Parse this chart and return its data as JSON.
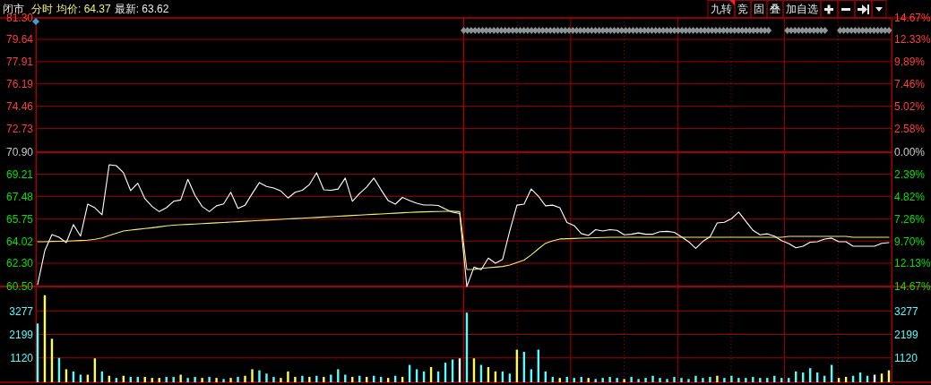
{
  "chart_data": [
    {
      "type": "line",
      "title": "闭市",
      "subtitle": "分时",
      "annotations": [
        "均价: 64.37",
        "最新: 63.62",
        "九转",
        "竞",
        "固",
        "叠",
        "加自选"
      ],
      "categories": [
        null,
        null,
        null,
        null,
        null,
        null,
        null,
        null,
        null,
        null,
        null,
        null,
        null,
        null,
        null,
        null,
        null,
        null,
        null,
        null,
        null,
        null,
        null,
        null,
        null,
        null,
        null,
        null,
        null,
        null,
        null,
        null,
        null,
        null,
        null,
        null,
        null,
        null,
        null,
        null,
        null,
        null,
        null,
        null,
        null,
        null,
        null,
        null,
        null,
        null,
        null,
        null,
        null,
        null,
        null,
        null,
        null,
        null,
        null,
        null,
        null,
        null,
        null,
        null,
        null,
        null,
        null,
        null,
        null,
        null,
        null,
        null,
        null,
        null,
        null,
        null,
        null,
        null,
        null,
        null,
        null,
        null,
        null,
        null,
        null,
        null,
        null,
        null,
        null,
        null,
        null,
        null,
        null,
        null,
        null,
        null,
        null,
        null,
        null,
        null,
        null,
        null,
        null,
        null,
        null,
        null,
        null,
        null,
        null,
        null,
        null,
        null,
        null,
        null,
        null,
        null,
        null,
        null,
        null,
        null
      ],
      "ylim": [
        60.5,
        81.3
      ],
      "yticks": [
        {
          "value": 60.5,
          "label": "60.50"
        },
        {
          "value": 62.3,
          "label": "62.30"
        },
        64.02,
        65.75,
        67.48,
        69.21,
        {
          "value": 70.9,
          "label": "70.90"
        },
        72.73,
        74.46,
        76.19,
        77.91,
        79.64,
        {
          "value": 81.3,
          "label": "81.30"
        }
      ],
      "y2lim": [
        -14.67,
        14.67
      ],
      "y2ticks": [
        {
          "value": -14.67,
          "label": "14.67%"
        },
        {
          "value": -12.13,
          "label": "12.13%"
        },
        {
          "value": -9.7,
          "label": "9.70%"
        },
        {
          "value": -7.26,
          "label": "7.26%"
        },
        {
          "value": -4.82,
          "label": "4.82%"
        },
        {
          "value": -2.39,
          "label": "2.39%"
        },
        {
          "value": 0,
          "label": "0.00%"
        },
        {
          "value": 2.58,
          "label": "2.58%"
        },
        {
          "value": 5.02,
          "label": "5.02%"
        },
        {
          "value": 7.46,
          "label": "7.46%"
        },
        {
          "value": 9.89,
          "label": "9.89%"
        },
        {
          "value": 12.33,
          "label": "12.33%"
        },
        {
          "value": 14.67,
          "label": "14.67%"
        }
      ],
      "tick_labels": "y",
      "grid": "y",
      "ref_lines": [
        {
          "axis": "y",
          "value": 70.9,
          "color": "#a00000"
        }
      ],
      "series": [
        {
          "color": "#ffffff",
          "values": [
            60.64,
            63.27,
            64.52,
            64.31,
            63.9,
            65.29,
            64.4,
            66.88,
            66.6,
            66.05,
            69.93,
            69.86,
            69.31,
            67.92,
            68.5,
            67.3,
            66.7,
            66.3,
            66.6,
            67.1,
            67.2,
            68.8,
            67.55,
            66.7,
            66.3,
            66.75,
            66.9,
            67.8,
            66.55,
            66.8,
            67.7,
            68.55,
            68.25,
            68.13,
            67.9,
            67.35,
            67.8,
            67.95,
            68.4,
            69.31,
            67.99,
            67.95,
            68.05,
            68.9,
            67.1,
            67.7,
            68.2,
            68.9,
            68.0,
            67.15,
            66.88,
            67.4,
            67.15,
            66.95,
            66.81,
            66.81,
            66.77,
            66.5,
            66.26,
            66.15,
            60.5,
            62.0,
            61.8,
            62.7,
            62.3,
            62.6,
            64.8,
            66.8,
            66.88,
            68.05,
            67.5,
            66.75,
            66.8,
            66.6,
            65.45,
            65.22,
            64.6,
            64.45,
            64.9,
            64.8,
            64.9,
            64.85,
            64.5,
            64.55,
            64.65,
            64.55,
            64.55,
            64.75,
            64.77,
            64.7,
            64.35,
            63.97,
            63.45,
            64.0,
            64.35,
            65.42,
            65.48,
            65.75,
            66.26,
            65.55,
            64.85,
            64.5,
            64.58,
            64.4,
            64.05,
            63.83,
            63.5,
            63.62,
            63.93,
            63.97,
            64.18,
            64.25,
            63.97,
            63.97,
            63.62,
            63.62,
            63.62,
            63.62,
            63.85,
            63.9
          ]
        },
        {
          "color": "#f0f070",
          "values": [
            63.97,
            63.97,
            63.99,
            64.0,
            64.02,
            64.04,
            64.06,
            64.09,
            64.16,
            64.26,
            64.45,
            64.62,
            64.8,
            64.87,
            64.93,
            64.99,
            65.05,
            65.12,
            65.2,
            65.25,
            65.28,
            65.31,
            65.34,
            65.37,
            65.4,
            65.43,
            65.46,
            65.49,
            65.52,
            65.55,
            65.58,
            65.61,
            65.64,
            65.67,
            65.7,
            65.73,
            65.76,
            65.79,
            65.82,
            65.85,
            65.88,
            65.91,
            65.94,
            65.97,
            66.0,
            66.03,
            66.06,
            66.09,
            66.12,
            66.15,
            66.18,
            66.21,
            66.24,
            66.26,
            66.28,
            66.3,
            66.31,
            66.32,
            66.33,
            66.3,
            61.82,
            61.82,
            61.9,
            61.96,
            62.0,
            62.05,
            62.16,
            62.35,
            62.55,
            62.95,
            63.41,
            63.85,
            64.04,
            64.18,
            64.2,
            64.22,
            64.24,
            64.26,
            64.28,
            64.3,
            64.31,
            64.31,
            64.31,
            64.31,
            64.31,
            64.31,
            64.31,
            64.31,
            64.31,
            64.31,
            64.31,
            64.31,
            64.31,
            64.31,
            64.31,
            64.31,
            64.31,
            64.31,
            64.31,
            64.31,
            64.31,
            64.31,
            64.31,
            64.31,
            64.31,
            64.38,
            64.38,
            64.38,
            64.38,
            64.38,
            64.38,
            64.38,
            64.38,
            64.38,
            64.31,
            64.31,
            64.31,
            64.31,
            64.31,
            64.31
          ]
        }
      ]
    },
    {
      "type": "bar",
      "categories": [
        null,
        null,
        null,
        null,
        null,
        null,
        null,
        null,
        null,
        null,
        null,
        null,
        null,
        null,
        null,
        null,
        null,
        null,
        null,
        null,
        null,
        null,
        null,
        null,
        null,
        null,
        null,
        null,
        null,
        null,
        null,
        null,
        null,
        null,
        null,
        null,
        null,
        null,
        null,
        null,
        null,
        null,
        null,
        null,
        null,
        null,
        null,
        null,
        null,
        null,
        null,
        null,
        null,
        null,
        null,
        null,
        null,
        null,
        null,
        null,
        null,
        null,
        null,
        null,
        null,
        null,
        null,
        null,
        null,
        null,
        null,
        null,
        null,
        null,
        null,
        null,
        null,
        null,
        null,
        null,
        null,
        null,
        null,
        null,
        null,
        null,
        null,
        null,
        null,
        null,
        null,
        null,
        null,
        null,
        null,
        null,
        null,
        null,
        null,
        null,
        null,
        null,
        null,
        null,
        null,
        null,
        null,
        null,
        null,
        null,
        null,
        null,
        null,
        null,
        null,
        null,
        null,
        null,
        null,
        null
      ],
      "ylim": [
        0,
        4400
      ],
      "yticks": [
        1120,
        2199,
        3277
      ],
      "y2lim": [
        0,
        4400
      ],
      "y2ticks": [
        1120,
        2199,
        3277
      ],
      "tick_labels": "y",
      "grid": "y",
      "series": [
        {
          "values": [
            2700,
            4000,
            2000,
            1120,
            600,
            500,
            350,
            350,
            1100,
            500,
            300,
            200,
            300,
            250,
            250,
            250,
            200,
            200,
            250,
            250,
            350,
            200,
            250,
            200,
            250,
            200,
            150,
            200,
            250,
            300,
            600,
            550,
            400,
            250,
            200,
            500,
            250,
            300,
            250,
            300,
            250,
            350,
            600,
            350,
            250,
            300,
            250,
            300,
            250,
            200,
            300,
            250,
            800,
            600,
            500,
            700,
            500,
            900,
            1050,
            1100,
            3200,
            1100,
            800,
            700,
            500,
            500,
            400,
            1500,
            1400,
            600,
            1500,
            500,
            250,
            200,
            250,
            200,
            250,
            200,
            150,
            200,
            250,
            200,
            150,
            250,
            150,
            200,
            300,
            200,
            150,
            250,
            200,
            150,
            300,
            200,
            250,
            300,
            200,
            300,
            200,
            200,
            250,
            200,
            200,
            300,
            200,
            200,
            500,
            450,
            650,
            450,
            300,
            800,
            200,
            250,
            300,
            450,
            300,
            350,
            400,
            550
          ],
          "colors": [
            "#54fcfc",
            "#fcfc54",
            "#fcfc54",
            "#54fcfc",
            "#fcfc54",
            "#54fcfc",
            "#54fcfc",
            "#fcfc54",
            "#fcfc54",
            "#54fcfc",
            "#fcfc54",
            "#54fcfc",
            "#fcfc54",
            "#54fcfc",
            "#54fcfc",
            "#fcfc54",
            "#fcfc54",
            "#fcfc54",
            "#54fcfc",
            "#54fcfc",
            "#fcfc54",
            "#54fcfc",
            "#54fcfc",
            "#fcfc54",
            "#54fcfc",
            "#fcfc54",
            "#54fcfc",
            "#fcfc54",
            "#54fcfc",
            "#fcfc54",
            "#fcfc54",
            "#54fcfc",
            "#54fcfc",
            "#54fcfc",
            "#fcfc54",
            "#fcfc54",
            "#fcfc54",
            "#54fcfc",
            "#fcfc54",
            "#54fcfc",
            "#fcfc54",
            "#54fcfc",
            "#54fcfc",
            "#54fcfc",
            "#fcfc54",
            "#54fcfc",
            "#fcfc54",
            "#54fcfc",
            "#54fcfc",
            "#fcfc54",
            "#54fcfc",
            "#fcfc54",
            "#54fcfc",
            "#54fcfc",
            "#54fcfc",
            "#fcfc54",
            "#54fcfc",
            "#54fcfc",
            "#54fcfc",
            "#fcfcfc",
            "#54fcfc",
            "#fcfc54",
            "#54fcfc",
            "#fcfc54",
            "#fcfc54",
            "#54fcfc",
            "#54fcfc",
            "#fcfc54",
            "#54fcfc",
            "#54fcfc",
            "#54fcfc",
            "#54fcfc",
            "#54fcfc",
            "#fcfc54",
            "#54fcfc",
            "#54fcfc",
            "#54fcfc",
            "#fcfc54",
            "#54fcfc",
            "#54fcfc",
            "#54fcfc",
            "#54fcfc",
            "#fcfc54",
            "#54fcfc",
            "#54fcfc",
            "#54fcfc",
            "#54fcfc",
            "#54fcfc",
            "#54fcfc",
            "#54fcfc",
            "#54fcfc",
            "#54fcfc",
            "#54fcfc",
            "#54fcfc",
            "#54fcfc",
            "#fcfc54",
            "#54fcfc",
            "#54fcfc",
            "#54fcfc",
            "#54fcfc",
            "#54fcfc",
            "#54fcfc",
            "#54fcfc",
            "#54fcfc",
            "#54fcfc",
            "#54fcfc",
            "#54fcfc",
            "#54fcfc",
            "#54fcfc",
            "#54fcfc",
            "#54fcfc",
            "#54fcfc",
            "#fcfc54",
            "#fcfc54",
            "#54fcfc",
            "#54fcfc",
            "#54fcfc",
            "#fcfcfc",
            "#fcfc54",
            "#fcfc54"
          ]
        }
      ]
    }
  ]
}
